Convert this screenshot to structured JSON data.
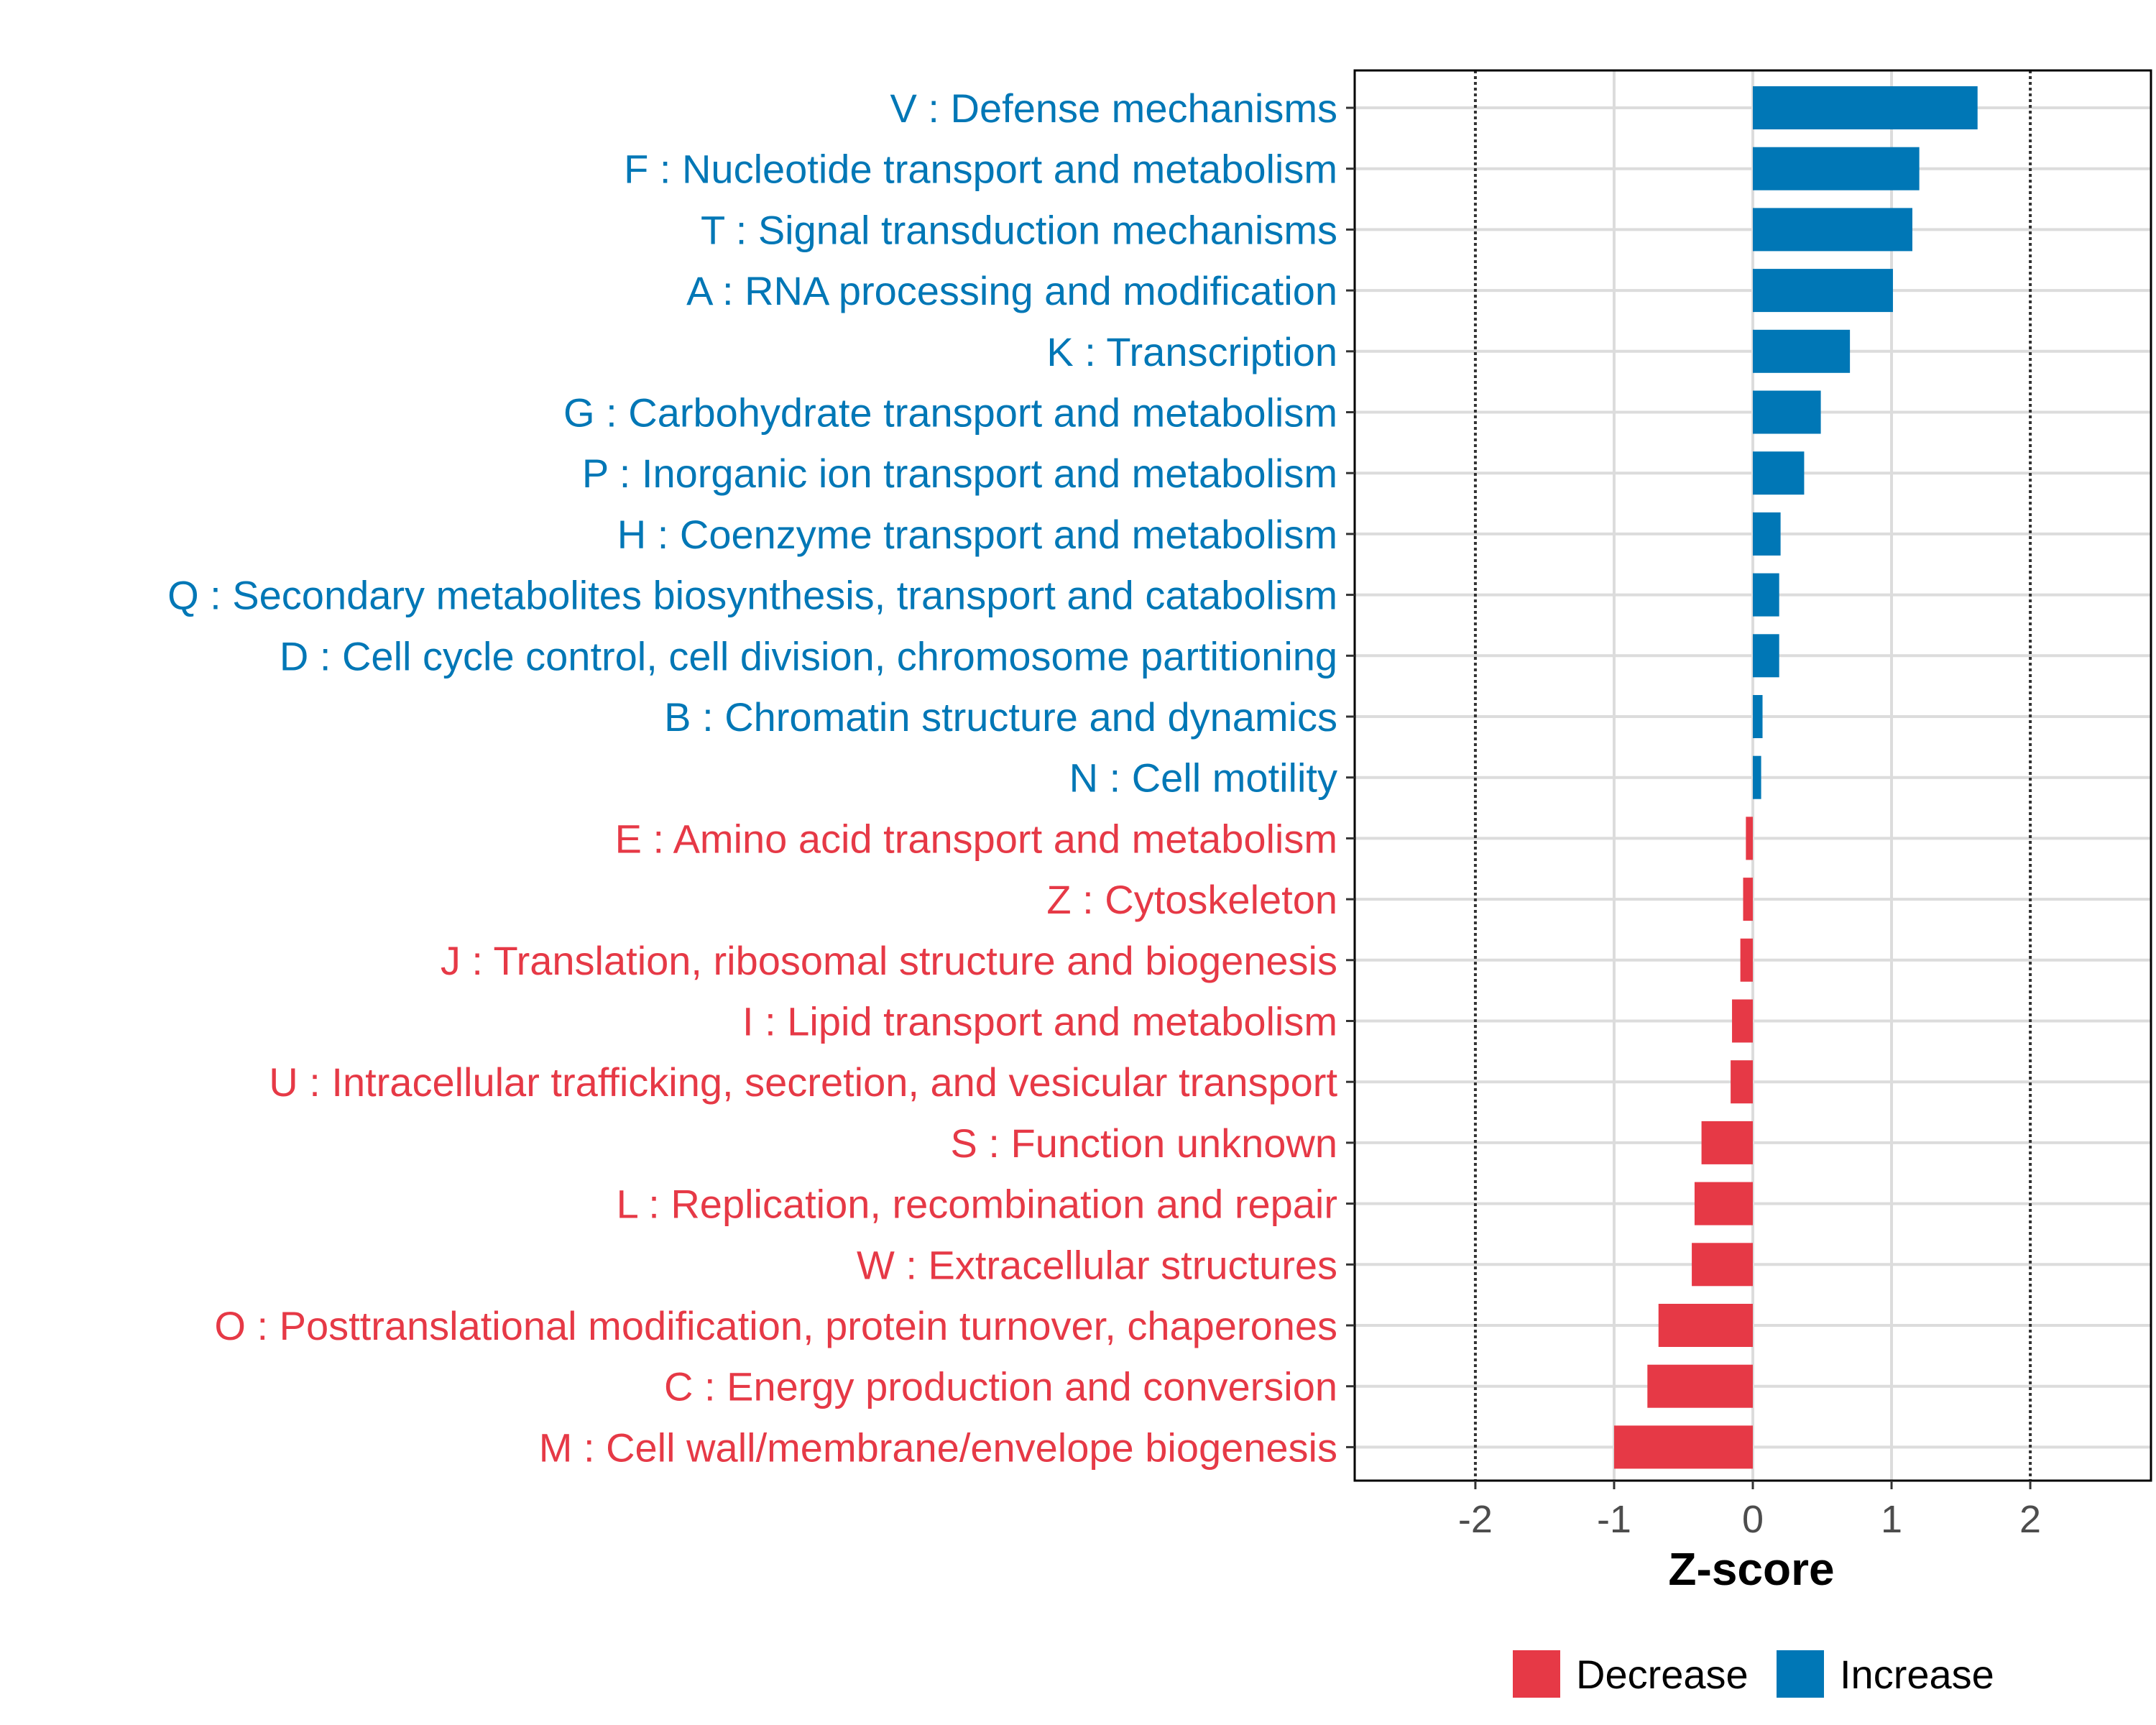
{
  "chart_data": {
    "type": "bar",
    "orientation": "horizontal",
    "xlabel": "Z-score",
    "ylabel": "",
    "xlim": [
      -2.87,
      2.87
    ],
    "x_ticks": [
      -2,
      -1,
      0,
      1,
      2
    ],
    "x_tick_labels": [
      "-2",
      "-1",
      "0",
      "1",
      "2"
    ],
    "reference_lines": [
      -2,
      2
    ],
    "grid": true,
    "legend_position": "bottom",
    "colors": {
      "Decrease": "#e63946",
      "Increase": "#0077b6"
    },
    "legend": [
      {
        "label": "Decrease",
        "color": "#e63946"
      },
      {
        "label": "Increase",
        "color": "#0077b6"
      }
    ],
    "categories": [
      "V : Defense mechanisms",
      "F : Nucleotide transport and metabolism",
      "T : Signal transduction mechanisms",
      "A : RNA processing and modification",
      "K : Transcription",
      "G : Carbohydrate transport and metabolism",
      "P : Inorganic ion transport and metabolism",
      "H : Coenzyme transport and metabolism",
      "Q : Secondary metabolites biosynthesis, transport and catabolism",
      "D : Cell cycle control, cell division, chromosome partitioning",
      "B : Chromatin structure and dynamics",
      "N : Cell motility",
      "E : Amino acid transport and metabolism",
      "Z : Cytoskeleton",
      "J : Translation, ribosomal structure and biogenesis",
      "I : Lipid transport and metabolism",
      "U : Intracellular trafficking, secretion, and vesicular transport",
      "S : Function unknown",
      "L : Replication, recombination and repair",
      "W : Extracellular structures",
      "O : Posttranslational modification, protein turnover, chaperones",
      "C : Energy production and conversion",
      "M : Cell wall/membrane/envelope biogenesis"
    ],
    "values": [
      1.62,
      1.2,
      1.15,
      1.01,
      0.7,
      0.49,
      0.37,
      0.2,
      0.19,
      0.19,
      0.07,
      0.06,
      -0.05,
      -0.07,
      -0.09,
      -0.15,
      -0.16,
      -0.37,
      -0.42,
      -0.44,
      -0.68,
      -0.76,
      -1.0
    ],
    "groups": [
      "Increase",
      "Increase",
      "Increase",
      "Increase",
      "Increase",
      "Increase",
      "Increase",
      "Increase",
      "Increase",
      "Increase",
      "Increase",
      "Increase",
      "Decrease",
      "Decrease",
      "Decrease",
      "Decrease",
      "Decrease",
      "Decrease",
      "Decrease",
      "Decrease",
      "Decrease",
      "Decrease",
      "Decrease"
    ]
  }
}
